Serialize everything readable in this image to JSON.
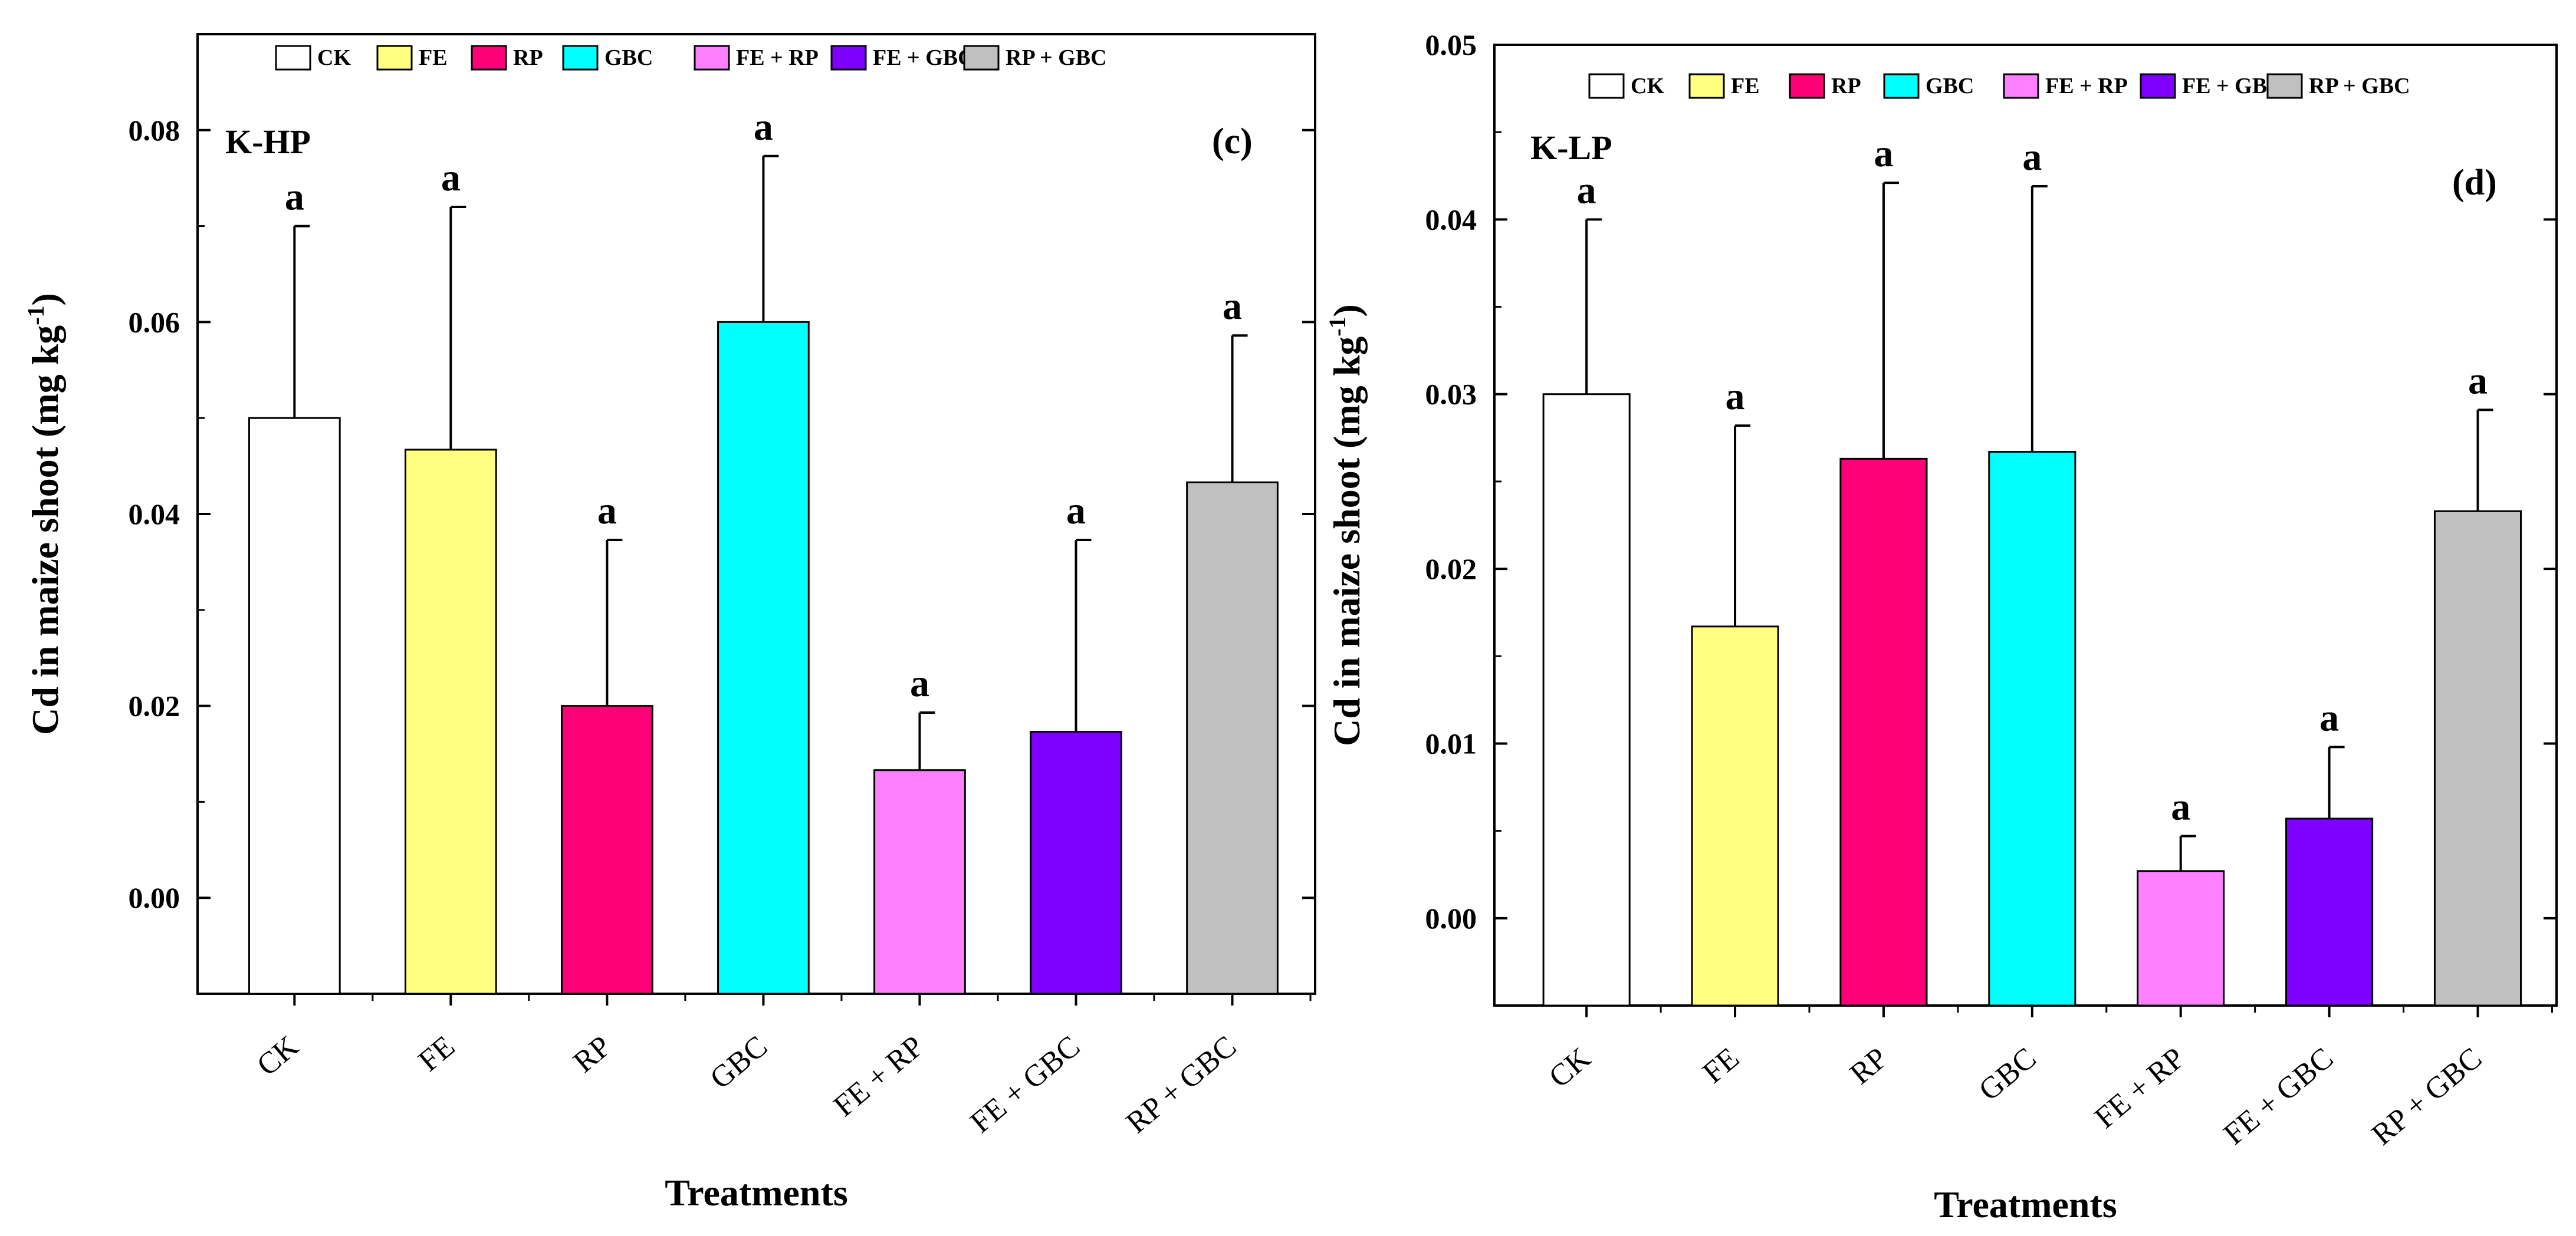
{
  "chart_data": [
    {
      "type": "bar",
      "panel_label": "(c)",
      "title": "K-HP",
      "xlabel": "Treatments",
      "ylabel": "Cd in maize shoot (mg kg",
      "ylabel_sup": "-1",
      "ylabel_close": ")",
      "ylim": [
        -0.01,
        0.09
      ],
      "yticks": [
        0.0,
        0.02,
        0.04,
        0.06,
        0.08
      ],
      "ytick_labels": [
        "0.00",
        "0.02",
        "0.04",
        "0.06",
        "0.08"
      ],
      "categories": [
        "CK",
        "FE",
        "RP",
        "GBC",
        "FE + RP",
        "FE + GBC",
        "RP + GBC"
      ],
      "values": [
        0.05,
        0.0467,
        0.02,
        0.06,
        0.0133,
        0.0173,
        0.0433
      ],
      "errors": [
        0.02,
        0.0253,
        0.0173,
        0.0173,
        0.006,
        0.02,
        0.0153
      ],
      "significance": [
        "a",
        "a",
        "a",
        "a",
        "a",
        "a",
        "a"
      ],
      "legend": [
        "CK",
        "FE",
        "RP",
        "GBC",
        "FE + RP",
        "FE + GBC",
        "RP + GBC"
      ],
      "legend_position": "top"
    },
    {
      "type": "bar",
      "panel_label": "(d)",
      "title": "K-LP",
      "xlabel": "Treatments",
      "ylabel": "Cd in maize shoot (mg kg",
      "ylabel_sup": "-1",
      "ylabel_close": ")",
      "ylim": [
        -0.005,
        0.05
      ],
      "yticks": [
        0.0,
        0.01,
        0.02,
        0.03,
        0.04,
        0.05
      ],
      "ytick_labels": [
        "0.00",
        "0.01",
        "0.02",
        "0.03",
        "0.04",
        "0.05"
      ],
      "categories": [
        "CK",
        "FE",
        "RP",
        "GBC",
        "FE + RP",
        "FE + GBC",
        "RP + GBC"
      ],
      "values": [
        0.03,
        0.0167,
        0.0263,
        0.0267,
        0.0027,
        0.0057,
        0.0233
      ],
      "errors": [
        0.01,
        0.0115,
        0.0158,
        0.0152,
        0.002,
        0.0041,
        0.0058
      ],
      "significance": [
        "a",
        "a",
        "a",
        "a",
        "a",
        "a",
        "a"
      ],
      "legend": [
        "CK",
        "FE",
        "RP",
        "GBC",
        "FE + RP",
        "FE + GBC",
        "RP + GBC"
      ],
      "legend_position": "top"
    }
  ],
  "colors": {
    "CK": "#ffffff",
    "FE": "#ffff80",
    "RP": "#ff0078",
    "GBC": "#00ffff",
    "FE + RP": "#ff80ff",
    "FE + GBC": "#8000ff",
    "RP + GBC": "#c0c0c0"
  }
}
